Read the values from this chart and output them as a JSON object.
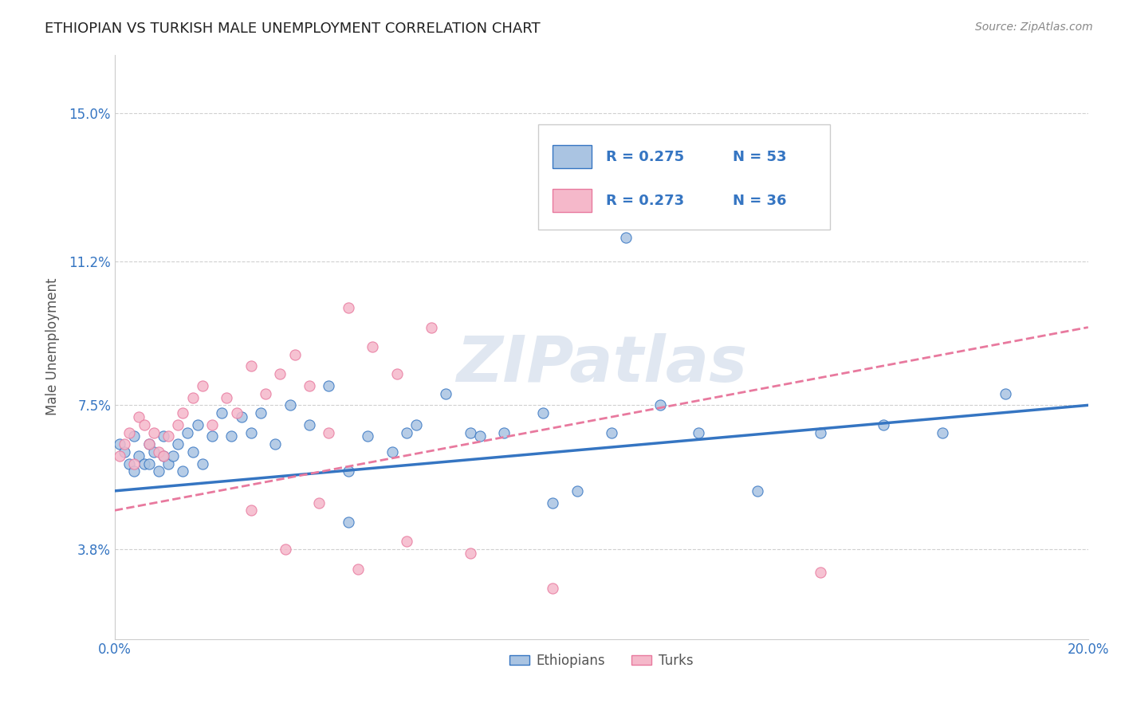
{
  "title": "ETHIOPIAN VS TURKISH MALE UNEMPLOYMENT CORRELATION CHART",
  "source": "Source: ZipAtlas.com",
  "ylabel": "Male Unemployment",
  "xlim": [
    0.0,
    0.2
  ],
  "ylim": [
    0.015,
    0.165
  ],
  "yticks": [
    0.038,
    0.075,
    0.112,
    0.15
  ],
  "ytick_labels": [
    "3.8%",
    "7.5%",
    "11.2%",
    "15.0%"
  ],
  "xticks": [
    0.0,
    0.2
  ],
  "xtick_labels": [
    "0.0%",
    "20.0%"
  ],
  "legend_r1": "R = 0.275",
  "legend_n1": "N = 53",
  "legend_r2": "R = 0.273",
  "legend_n2": "N = 36",
  "watermark": "ZIPatlas",
  "ethiopian_color": "#aac4e2",
  "turkish_color": "#f5b8ca",
  "ethiopian_line_color": "#3575c2",
  "turkish_line_color": "#e8799e",
  "background_color": "#ffffff",
  "grid_color": "#d0d0d0",
  "ethiopians_x": [
    0.001,
    0.002,
    0.003,
    0.004,
    0.004,
    0.005,
    0.006,
    0.007,
    0.007,
    0.008,
    0.009,
    0.01,
    0.01,
    0.011,
    0.012,
    0.013,
    0.014,
    0.015,
    0.016,
    0.017,
    0.018,
    0.02,
    0.022,
    0.024,
    0.026,
    0.028,
    0.03,
    0.033,
    0.036,
    0.04,
    0.044,
    0.048,
    0.052,
    0.057,
    0.062,
    0.068,
    0.073,
    0.08,
    0.088,
    0.095,
    0.102,
    0.112,
    0.12,
    0.132,
    0.145,
    0.158,
    0.17,
    0.183,
    0.048,
    0.06,
    0.075,
    0.09,
    0.105
  ],
  "ethiopians_y": [
    0.065,
    0.063,
    0.06,
    0.067,
    0.058,
    0.062,
    0.06,
    0.065,
    0.06,
    0.063,
    0.058,
    0.062,
    0.067,
    0.06,
    0.062,
    0.065,
    0.058,
    0.068,
    0.063,
    0.07,
    0.06,
    0.067,
    0.073,
    0.067,
    0.072,
    0.068,
    0.073,
    0.065,
    0.075,
    0.07,
    0.08,
    0.058,
    0.067,
    0.063,
    0.07,
    0.078,
    0.068,
    0.068,
    0.073,
    0.053,
    0.068,
    0.075,
    0.068,
    0.053,
    0.068,
    0.07,
    0.068,
    0.078,
    0.045,
    0.068,
    0.067,
    0.05,
    0.118
  ],
  "turks_x": [
    0.001,
    0.002,
    0.003,
    0.004,
    0.005,
    0.006,
    0.007,
    0.008,
    0.009,
    0.01,
    0.011,
    0.013,
    0.014,
    0.016,
    0.018,
    0.02,
    0.023,
    0.025,
    0.028,
    0.031,
    0.034,
    0.037,
    0.04,
    0.044,
    0.048,
    0.053,
    0.058,
    0.065,
    0.028,
    0.035,
    0.042,
    0.05,
    0.06,
    0.073,
    0.09,
    0.145
  ],
  "turks_y": [
    0.062,
    0.065,
    0.068,
    0.06,
    0.072,
    0.07,
    0.065,
    0.068,
    0.063,
    0.062,
    0.067,
    0.07,
    0.073,
    0.077,
    0.08,
    0.07,
    0.077,
    0.073,
    0.085,
    0.078,
    0.083,
    0.088,
    0.08,
    0.068,
    0.1,
    0.09,
    0.083,
    0.095,
    0.048,
    0.038,
    0.05,
    0.033,
    0.04,
    0.037,
    0.028,
    0.032
  ],
  "eth_trend_start_y": 0.053,
  "eth_trend_end_y": 0.075,
  "turk_trend_start_y": 0.048,
  "turk_trend_end_y": 0.095
}
